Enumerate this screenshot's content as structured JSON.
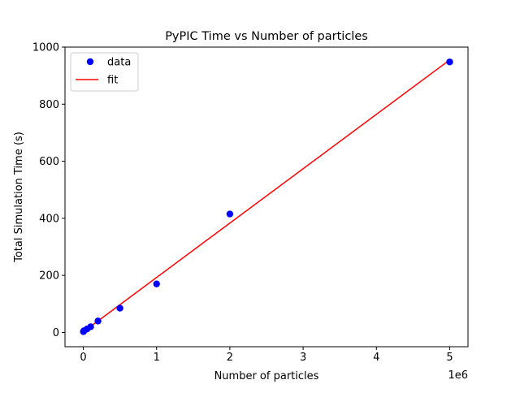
{
  "chart_data": {
    "type": "scatter",
    "title": "PyPIC Time vs Number of particles",
    "xlabel": "Number of particles",
    "ylabel": "Total Simulation Time (s)",
    "x_offset_label": "1e6",
    "xlim": [
      -0.25,
      5.25
    ],
    "ylim": [
      -50,
      1000
    ],
    "x_ticks": [
      0,
      1,
      2,
      3,
      4,
      5
    ],
    "x_tick_labels": [
      "0",
      "1",
      "2",
      "3",
      "4",
      "5"
    ],
    "y_ticks": [
      0,
      200,
      400,
      600,
      800,
      1000
    ],
    "y_tick_labels": [
      "0",
      "200",
      "400",
      "600",
      "800",
      "1000"
    ],
    "grid": false,
    "legend_position": "top-left",
    "series": [
      {
        "name": "data",
        "kind": "scatter",
        "color": "#0000ff",
        "x": [
          0.001,
          0.005,
          0.01,
          0.05,
          0.1,
          0.2,
          0.5,
          1,
          2,
          5
        ],
        "y": [
          3,
          4,
          6,
          12,
          20,
          40,
          85,
          170,
          415,
          948
        ]
      },
      {
        "name": "fit",
        "kind": "line",
        "color": "#ff0000",
        "x": [
          0,
          5
        ],
        "y": [
          2,
          955
        ]
      }
    ]
  }
}
